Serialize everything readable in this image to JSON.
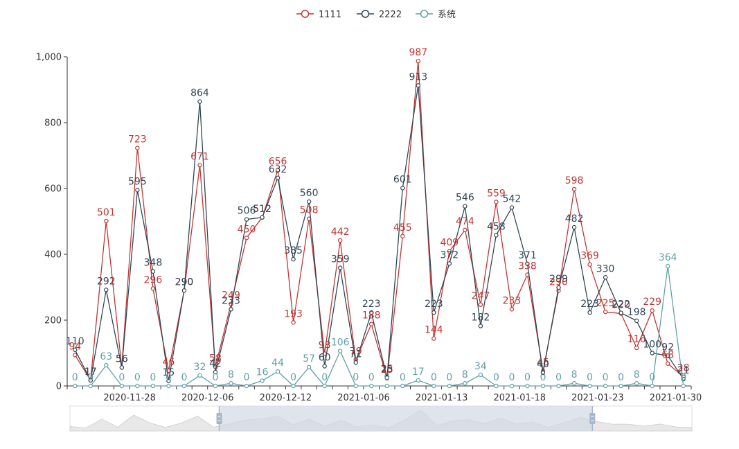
{
  "colors": {
    "series": [
      "#c23531",
      "#2f4554",
      "#61a0a8"
    ],
    "axis": "#333333",
    "zoom_fill": "#d3dae6",
    "zoom_handle": "#a7b7cc"
  },
  "chart_data": {
    "type": "line",
    "title": "",
    "xlabel": "",
    "ylabel": "",
    "ylim": [
      0,
      1000
    ],
    "y_ticks": [
      "0",
      "200",
      "400",
      "600",
      "800",
      "1,000"
    ],
    "x_tick_labels": [
      "2020-11-28",
      "2020-12-06",
      "2020-12-12",
      "2021-01-06",
      "2021-01-13",
      "2021-01-18",
      "2021-01-23",
      "2021-01-30"
    ],
    "legend_position": "top-center",
    "data_labels": true,
    "data_zoom": {
      "visible": true,
      "start_percent": 24,
      "end_percent": 84
    },
    "series": [
      {
        "name": "1111",
        "values": [
          94,
          17,
          501,
          56,
          723,
          296,
          46,
          290,
          671,
          58,
          249,
          450,
          512,
          656,
          193,
          508,
          98,
          442,
          79,
          188,
          23,
          455,
          987,
          144,
          409,
          474,
          247,
          559,
          233,
          338,
          45,
          290,
          598,
          369,
          225,
          220,
          116,
          229,
          68,
          28
        ]
      },
      {
        "name": "2222",
        "values": [
          110,
          17,
          292,
          56,
          595,
          348,
          15,
          290,
          864,
          42,
          233,
          506,
          512,
          632,
          385,
          560,
          60,
          359,
          71,
          223,
          25,
          601,
          913,
          223,
          372,
          546,
          182,
          458,
          542,
          371,
          40,
          299,
          482,
          223,
          330,
          222,
          198,
          100,
          92,
          21
        ]
      },
      {
        "name": "系统",
        "values": [
          0,
          0,
          63,
          0,
          0,
          0,
          0,
          0,
          32,
          0,
          8,
          0,
          16,
          44,
          0,
          57,
          0,
          106,
          0,
          0,
          0,
          0,
          17,
          0,
          0,
          8,
          34,
          0,
          0,
          0,
          0,
          0,
          8,
          0,
          0,
          0,
          8,
          0,
          364,
          0
        ]
      }
    ]
  }
}
